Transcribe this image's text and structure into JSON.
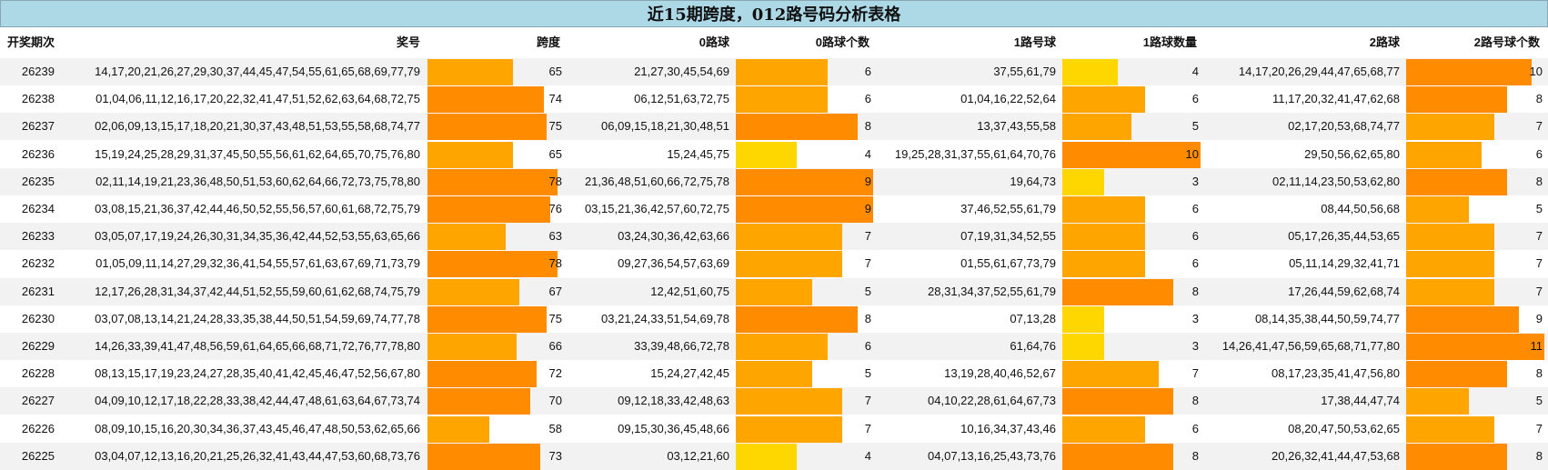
{
  "title": "近15期跨度，012路号码分析表格",
  "headers": [
    "开奖期次",
    "奖号",
    "跨度",
    "0路球",
    "0路球个数",
    "1路号球",
    "1路球数量",
    "2路球",
    "2路号球个数"
  ],
  "colors": {
    "title_bg": "#ADD8E6",
    "bar_dark": "#FF8C00",
    "bar_mid": "#FFA500",
    "bar_light": "#FFD700",
    "row_alt": "#F2F2F2"
  },
  "chart_data": {
    "type": "table",
    "title": "近15期跨度，012路号码分析表格",
    "columns": [
      "开奖期次",
      "奖号",
      "跨度",
      "0路球",
      "0路球个数",
      "1路号球",
      "1路球数量",
      "2路球",
      "2路号球个数"
    ],
    "rows": [
      [
        "26239",
        "14,17,20,21,26,27,29,30,37,44,45,47,54,55,61,65,68,69,77,79",
        65,
        "21,27,30,45,54,69",
        6,
        "37,55,61,79",
        4,
        "14,17,20,26,29,44,47,65,68,77",
        10
      ],
      [
        "26238",
        "01,04,06,11,12,16,17,20,22,32,41,47,51,52,62,63,64,68,72,75",
        74,
        "06,12,51,63,72,75",
        6,
        "01,04,16,22,52,64",
        6,
        "11,17,20,32,41,47,62,68",
        8
      ],
      [
        "26237",
        "02,06,09,13,15,17,18,20,21,30,37,43,48,51,53,55,58,68,74,77",
        75,
        "06,09,15,18,21,30,48,51",
        8,
        "13,37,43,55,58",
        5,
        "02,17,20,53,68,74,77",
        7
      ],
      [
        "26236",
        "15,19,24,25,28,29,31,37,45,50,55,56,61,62,64,65,70,75,76,80",
        65,
        "15,24,45,75",
        4,
        "19,25,28,31,37,55,61,64,70,76",
        10,
        "29,50,56,62,65,80",
        6
      ],
      [
        "26235",
        "02,11,14,19,21,23,36,48,50,51,53,60,62,64,66,72,73,75,78,80",
        78,
        "21,36,48,51,60,66,72,75,78",
        9,
        "19,64,73",
        3,
        "02,11,14,23,50,53,62,80",
        8
      ],
      [
        "26234",
        "03,08,15,21,36,37,42,44,46,50,52,55,56,57,60,61,68,72,75,79",
        76,
        "03,15,21,36,42,57,60,72,75",
        9,
        "37,46,52,55,61,79",
        6,
        "08,44,50,56,68",
        5
      ],
      [
        "26233",
        "03,05,07,17,19,24,26,30,31,34,35,36,42,44,52,53,55,63,65,66",
        63,
        "03,24,30,36,42,63,66",
        7,
        "07,19,31,34,52,55",
        6,
        "05,17,26,35,44,53,65",
        7
      ],
      [
        "26232",
        "01,05,09,11,14,27,29,32,36,41,54,55,57,61,63,67,69,71,73,79",
        78,
        "09,27,36,54,57,63,69",
        7,
        "01,55,61,67,73,79",
        6,
        "05,11,14,29,32,41,71",
        7
      ],
      [
        "26231",
        "12,17,26,28,31,34,37,42,44,51,52,55,59,60,61,62,68,74,75,79",
        67,
        "12,42,51,60,75",
        5,
        "28,31,34,37,52,55,61,79",
        8,
        "17,26,44,59,62,68,74",
        7
      ],
      [
        "26230",
        "03,07,08,13,14,21,24,28,33,35,38,44,50,51,54,59,69,74,77,78",
        75,
        "03,21,24,33,51,54,69,78",
        8,
        "07,13,28",
        3,
        "08,14,35,38,44,50,59,74,77",
        9
      ],
      [
        "26229",
        "14,26,33,39,41,47,48,56,59,61,64,65,66,68,71,72,76,77,78,80",
        66,
        "33,39,48,66,72,78",
        6,
        "61,64,76",
        3,
        "14,26,41,47,56,59,65,68,71,77,80",
        11
      ],
      [
        "26228",
        "08,13,15,17,19,23,24,27,28,35,40,41,42,45,46,47,52,56,67,80",
        72,
        "15,24,27,42,45",
        5,
        "13,19,28,40,46,52,67",
        7,
        "08,17,23,35,41,47,56,80",
        8
      ],
      [
        "26227",
        "04,09,10,12,17,18,22,28,33,38,42,44,47,48,61,63,64,67,73,74",
        70,
        "09,12,18,33,42,48,63",
        7,
        "04,10,22,28,61,64,67,73",
        8,
        "17,38,44,47,74",
        5
      ],
      [
        "26226",
        "08,09,10,15,16,20,30,34,36,37,43,45,46,47,48,50,53,62,65,66",
        58,
        "09,15,30,36,45,48,66",
        7,
        "10,16,34,37,43,46",
        6,
        "08,20,47,50,53,62,65",
        7
      ],
      [
        "26225",
        "03,04,07,12,13,16,20,21,25,26,32,41,43,44,47,53,60,68,73,76",
        73,
        "03,12,21,60",
        4,
        "04,07,13,16,25,43,73,76",
        8,
        "20,26,32,41,44,47,53,68",
        8
      ]
    ]
  }
}
